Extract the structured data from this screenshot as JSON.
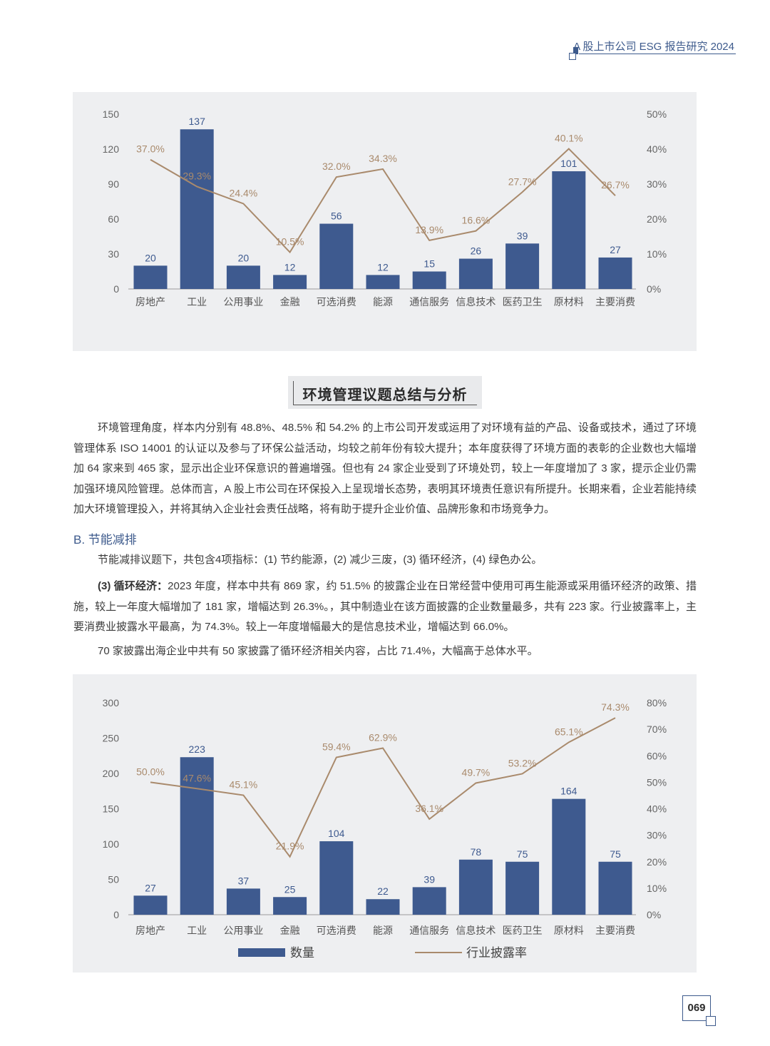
{
  "header": {
    "title": "A 股上市公司 ESG 报告研究 2024"
  },
  "colors": {
    "bar": "#3e5a8f",
    "line": "#a98a6c",
    "panel": "#eeeff1",
    "accent": "#3d5a8c"
  },
  "chart_data": [
    {
      "type": "bar+line",
      "categories": [
        "房地产",
        "工业",
        "公用事业",
        "金融",
        "可选消费",
        "能源",
        "通信服务",
        "信息技术",
        "医药卫生",
        "原材料",
        "主要消费"
      ],
      "series": [
        {
          "type": "bar",
          "axis": "left",
          "values": [
            20,
            137,
            20,
            12,
            56,
            12,
            15,
            26,
            39,
            101,
            27
          ]
        },
        {
          "type": "line",
          "axis": "right",
          "values": [
            37.0,
            29.3,
            24.4,
            10.5,
            32.0,
            34.3,
            13.9,
            16.6,
            27.7,
            40.1,
            26.7
          ],
          "labels": [
            "37.0%",
            "29.3%",
            "24.4%",
            "10.5%",
            "32.0%",
            "34.3%",
            "13.9%",
            "16.6%",
            "27.7%",
            "40.1%",
            "26.7%"
          ]
        }
      ],
      "y_left": {
        "min": 0,
        "max": 150,
        "ticks": [
          "0",
          "30",
          "60",
          "90",
          "120",
          "150"
        ]
      },
      "y_right": {
        "min": 0,
        "max": 50,
        "ticks": [
          "0%",
          "10%",
          "20%",
          "30%",
          "40%",
          "50%"
        ]
      },
      "grid": false,
      "legend": null
    },
    {
      "type": "bar+line",
      "categories": [
        "房地产",
        "工业",
        "公用事业",
        "金融",
        "可选消费",
        "能源",
        "通信服务",
        "信息技术",
        "医药卫生",
        "原材料",
        "主要消费"
      ],
      "series": [
        {
          "type": "bar",
          "axis": "left",
          "name": "数量",
          "values": [
            27,
            223,
            37,
            25,
            104,
            22,
            39,
            78,
            75,
            164,
            75
          ]
        },
        {
          "type": "line",
          "axis": "right",
          "name": "行业披露率",
          "values": [
            50.0,
            47.6,
            45.1,
            21.9,
            59.4,
            62.9,
            36.1,
            49.7,
            53.2,
            65.1,
            74.3
          ],
          "labels": [
            "50.0%",
            "47.6%",
            "45.1%",
            "21.9%",
            "59.4%",
            "62.9%",
            "36.1%",
            "49.7%",
            "53.2%",
            "65.1%",
            "74.3%"
          ]
        }
      ],
      "y_left": {
        "min": 0,
        "max": 300,
        "ticks": [
          "0",
          "50",
          "100",
          "150",
          "200",
          "250",
          "300"
        ]
      },
      "y_right": {
        "min": 0,
        "max": 80,
        "ticks": [
          "0%",
          "10%",
          "20%",
          "30%",
          "40%",
          "50%",
          "60%",
          "70%",
          "80%"
        ]
      },
      "grid": false,
      "legend": "bottom"
    }
  ],
  "section": {
    "title": "环境管理议题总结与分析"
  },
  "paragraphs": {
    "p1": "环境管理角度，样本内分别有 48.8%、48.5% 和 54.2% 的上市公司开发或运用了对环境有益的产品、设备或技术，通过了环境管理体系 ISO 14001 的认证以及参与了环保公益活动，均较之前年份有较大提升；本年度获得了环境方面的表彰的企业数也大幅增加 64 家来到 465 家，显示出企业环保意识的普遍增强。但也有 24 家企业受到了环境处罚，较上一年度增加了 3 家，提示企业仍需加强环境风险管理。总体而言，A 股上市公司在环保投入上呈现增长态势，表明其环境责任意识有所提升。长期来看，企业若能持续加大环境管理投入，并将其纳入企业社会责任战略，将有助于提升企业价值、品牌形象和市场竞争力。",
    "subhead": "B. 节能减排",
    "p2": "节能减排议题下，共包含4项指标：(1) 节约能源，(2) 减少三废，(3) 循环经济，(4) 绿色办公。",
    "p3_lead": "(3) 循环经济：",
    "p3": "2023 年度，样本中共有 869 家，约 51.5% 的披露企业在日常经营中使用可再生能源或采用循环经济的政策、措施，较上一年度大幅增加了 181 家，增幅达到 26.3%。，其中制造业在该方面披露的企业数量最多，共有 223 家。行业披露率上，主要消费业披露水平最高，为 74.3%。较上一年度增幅最大的是信息技术业，增幅达到 66.0%。",
    "p4": "70 家披露出海企业中共有 50 家披露了循环经济相关内容，占比 71.4%，大幅高于总体水平。"
  },
  "page_number": "069"
}
